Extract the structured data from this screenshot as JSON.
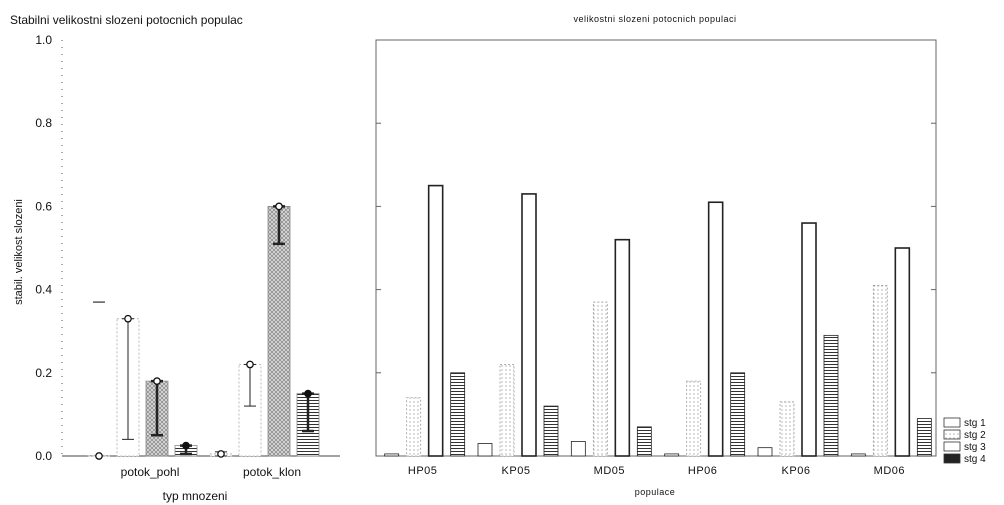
{
  "chart_data": [
    {
      "type": "bar",
      "title": "Stabilni velikostni slozeni potocnich populac",
      "xlabel": "typ mnozeni",
      "ylabel": "stabil. velikost  slozeni",
      "ylim": [
        0,
        1.0
      ],
      "yticks": [
        "0.0",
        "0.2",
        "0.4",
        "0.6",
        "0.8",
        "1.0"
      ],
      "categories": [
        "potok_pohl",
        "potok_klon"
      ],
      "series": [
        {
          "name": "stg 1",
          "values": [
            0.0,
            0.005
          ],
          "whisker": [
            [
              0.37,
              0.37
            ],
            [
              0.0,
              0.01
            ]
          ],
          "fill": "#ffffff"
        },
        {
          "name": "stg 2",
          "values": [
            0.33,
            0.22
          ],
          "whisker": [
            [
              0.04,
              0.33
            ],
            [
              0.12,
              0.22
            ]
          ],
          "fill": "#ffffff"
        },
        {
          "name": "stg 3",
          "values": [
            0.18,
            0.6
          ],
          "whisker": [
            [
              0.05,
              0.18
            ],
            [
              0.51,
              0.6
            ]
          ],
          "fill": "#c8c8c8"
        },
        {
          "name": "stg 4",
          "values": [
            0.025,
            0.15
          ],
          "whisker": [
            [
              0.005,
              0.025
            ],
            [
              0.06,
              0.15
            ]
          ],
          "fill": "#e0e0e0"
        }
      ]
    },
    {
      "type": "bar",
      "title": "velikostni slozeni potocnich populaci",
      "xlabel": "populace",
      "ylim": [
        0,
        1.0
      ],
      "categories": [
        "HP05",
        "KP05",
        "MD05",
        "HP06",
        "KP06",
        "MD06"
      ],
      "series": [
        {
          "name": "stg 1",
          "values": [
            0.005,
            0.03,
            0.035,
            0.005,
            0.02,
            0.005
          ]
        },
        {
          "name": "stg 2",
          "values": [
            0.14,
            0.22,
            0.37,
            0.18,
            0.13,
            0.41
          ]
        },
        {
          "name": "stg 3",
          "values": [
            0.65,
            0.63,
            0.52,
            0.61,
            0.56,
            0.5
          ]
        },
        {
          "name": "stg 4",
          "values": [
            0.2,
            0.12,
            0.07,
            0.2,
            0.29,
            0.09
          ]
        }
      ],
      "legend": {
        "position": "bottom-right",
        "items": [
          "stg 1",
          "stg 2",
          "stg 3",
          "stg 4"
        ]
      }
    }
  ]
}
